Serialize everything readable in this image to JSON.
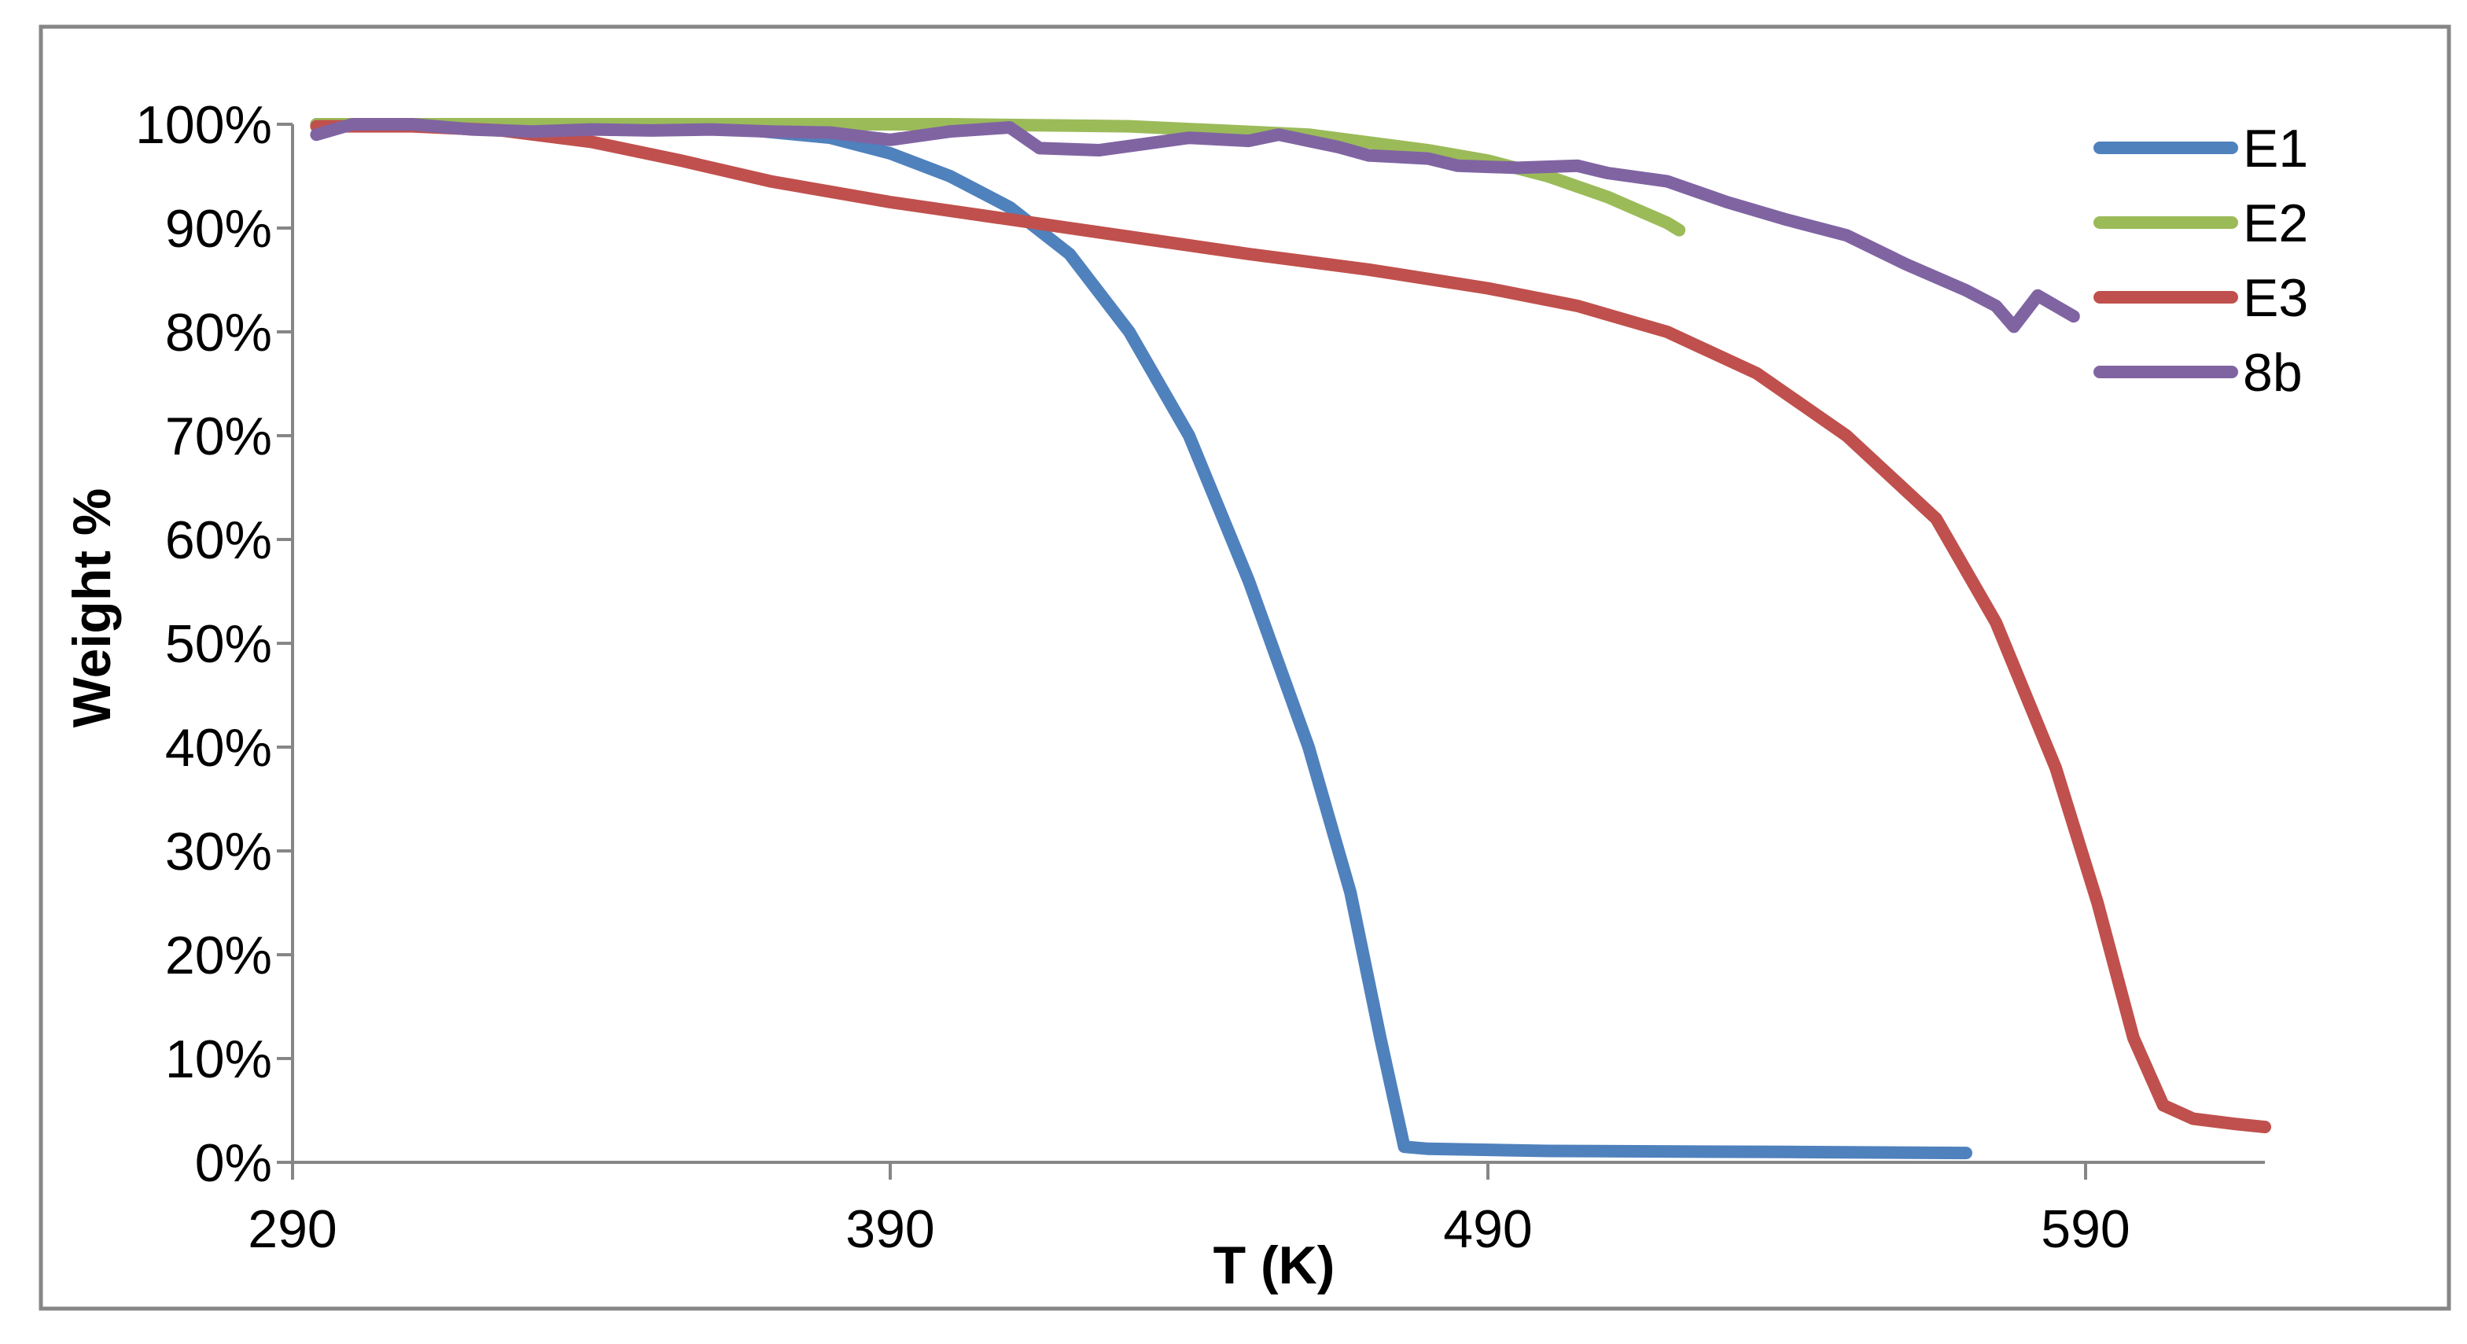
{
  "chart_data": {
    "type": "line",
    "title": "",
    "xlabel": "T (K)",
    "ylabel": "Weight %",
    "xlim": [
      290,
      620
    ],
    "ylim": [
      0,
      100
    ],
    "x_ticks": [
      290,
      390,
      490,
      590
    ],
    "x_tick_labels": [
      "290",
      "390",
      "490",
      "590"
    ],
    "y_ticks": [
      0,
      10,
      20,
      30,
      40,
      50,
      60,
      70,
      80,
      90,
      100
    ],
    "y_tick_labels": [
      "0%",
      "10%",
      "20%",
      "30%",
      "40%",
      "50%",
      "60%",
      "70%",
      "80%",
      "90%",
      "100%"
    ],
    "grid": false,
    "legend_position": "top-right",
    "series": [
      {
        "name": "E1",
        "color": "#4f81bd",
        "points": [
          [
            294,
            100
          ],
          [
            330,
            100
          ],
          [
            360,
            99.8
          ],
          [
            380,
            98.7
          ],
          [
            390,
            97.2
          ],
          [
            400,
            95
          ],
          [
            410,
            92
          ],
          [
            420,
            87.5
          ],
          [
            430,
            80
          ],
          [
            440,
            70
          ],
          [
            450,
            56
          ],
          [
            460,
            40
          ],
          [
            467,
            26
          ],
          [
            472,
            12
          ],
          [
            476,
            1.5
          ],
          [
            480,
            1.3
          ],
          [
            500,
            1.1
          ],
          [
            540,
            1.0
          ],
          [
            570,
            0.9
          ],
          [
            569,
            0.9
          ]
        ]
      },
      {
        "name": "E2",
        "color": "#9bbb59",
        "points": [
          [
            294,
            100
          ],
          [
            350,
            100
          ],
          [
            400,
            100
          ],
          [
            430,
            99.8
          ],
          [
            460,
            99
          ],
          [
            480,
            97.5
          ],
          [
            490,
            96.5
          ],
          [
            500,
            95
          ],
          [
            510,
            93
          ],
          [
            520,
            90.5
          ],
          [
            522,
            89.8
          ]
        ]
      },
      {
        "name": "E3",
        "color": "#c0504d",
        "points": [
          [
            294,
            99.8
          ],
          [
            310,
            99.8
          ],
          [
            325,
            99.4
          ],
          [
            340,
            98.3
          ],
          [
            355,
            96.5
          ],
          [
            370,
            94.5
          ],
          [
            390,
            92.5
          ],
          [
            420,
            90
          ],
          [
            450,
            87.5
          ],
          [
            470,
            86
          ],
          [
            490,
            84.2
          ],
          [
            505,
            82.5
          ],
          [
            520,
            80
          ],
          [
            535,
            76
          ],
          [
            550,
            70
          ],
          [
            565,
            62
          ],
          [
            575,
            52
          ],
          [
            585,
            38
          ],
          [
            592,
            25
          ],
          [
            598,
            12
          ],
          [
            603,
            5.5
          ],
          [
            608,
            4.2
          ],
          [
            615,
            3.7
          ],
          [
            620,
            3.4
          ]
        ]
      },
      {
        "name": "8b",
        "color": "#8064a2",
        "points": [
          [
            294,
            99
          ],
          [
            300,
            100
          ],
          [
            310,
            100
          ],
          [
            320,
            99.5
          ],
          [
            330,
            99.3
          ],
          [
            340,
            99.5
          ],
          [
            350,
            99.4
          ],
          [
            360,
            99.5
          ],
          [
            370,
            99.3
          ],
          [
            380,
            99.2
          ],
          [
            390,
            98.5
          ],
          [
            400,
            99.3
          ],
          [
            410,
            99.7
          ],
          [
            415,
            97.7
          ],
          [
            425,
            97.5
          ],
          [
            440,
            98.7
          ],
          [
            450,
            98.4
          ],
          [
            455,
            99
          ],
          [
            465,
            97.8
          ],
          [
            470,
            97
          ],
          [
            480,
            96.7
          ],
          [
            485,
            96
          ],
          [
            495,
            95.8
          ],
          [
            505,
            96
          ],
          [
            510,
            95.3
          ],
          [
            520,
            94.5
          ],
          [
            530,
            92.5
          ],
          [
            540,
            90.8
          ],
          [
            550,
            89.3
          ],
          [
            560,
            86.5
          ],
          [
            570,
            84
          ],
          [
            575,
            82.5
          ],
          [
            578,
            80.5
          ],
          [
            582,
            83.5
          ],
          [
            588,
            81.5
          ]
        ]
      }
    ]
  }
}
